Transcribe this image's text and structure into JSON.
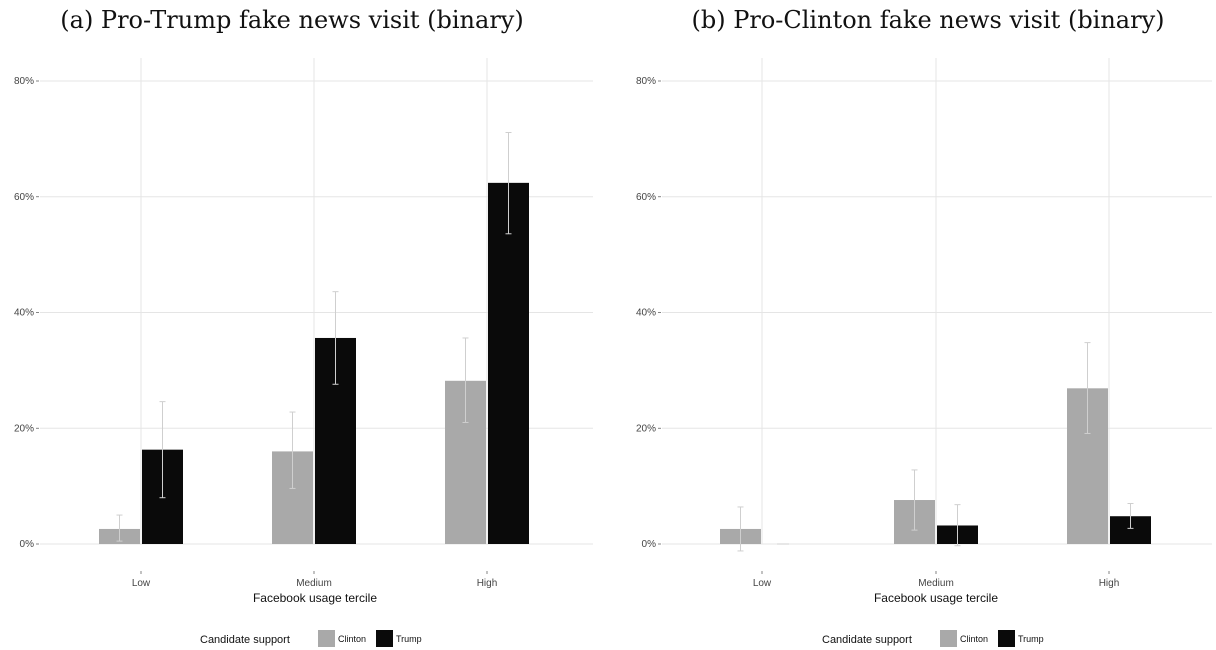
{
  "colors": {
    "clinton": "#a9a9a9",
    "trump": "#0a0a0a",
    "grid": "#e5e5e5",
    "errorbar": "#cfcfcf"
  },
  "chart_data": [
    {
      "type": "bar",
      "title": "(a) Pro-Trump fake news visit (binary)",
      "xlabel": "Facebook usage tercile",
      "ylabel": "",
      "ylim": [
        0,
        0.8
      ],
      "yticks": [
        "0%",
        "20%",
        "40%",
        "60%",
        "80%"
      ],
      "categories": [
        "Low",
        "Medium",
        "High"
      ],
      "legend_title": "Candidate support",
      "legend_position": "bottom",
      "grid": true,
      "series": [
        {
          "name": "Clinton",
          "values": [
            0.026,
            0.16,
            0.282
          ],
          "ci_low": [
            0.005,
            0.096,
            0.21
          ],
          "ci_high": [
            0.05,
            0.228,
            0.356
          ]
        },
        {
          "name": "Trump",
          "values": [
            0.163,
            0.356,
            0.624
          ],
          "ci_low": [
            0.08,
            0.276,
            0.536
          ],
          "ci_high": [
            0.246,
            0.436,
            0.711
          ]
        }
      ]
    },
    {
      "type": "bar",
      "title": "(b) Pro-Clinton fake news visit (binary)",
      "xlabel": "Facebook usage tercile",
      "ylabel": "",
      "ylim": [
        0,
        0.8
      ],
      "yticks": [
        "0%",
        "20%",
        "40%",
        "60%",
        "80%"
      ],
      "categories": [
        "Low",
        "Medium",
        "High"
      ],
      "legend_title": "Candidate support",
      "legend_position": "bottom",
      "grid": true,
      "series": [
        {
          "name": "Clinton",
          "values": [
            0.026,
            0.076,
            0.269
          ],
          "ci_low": [
            -0.012,
            0.024,
            0.191
          ],
          "ci_high": [
            0.064,
            0.128,
            0.348
          ]
        },
        {
          "name": "Trump",
          "values": [
            0.0,
            0.032,
            0.048
          ],
          "ci_low": [
            0.0,
            -0.003,
            0.027
          ],
          "ci_high": [
            0.0,
            0.068,
            0.07
          ]
        }
      ]
    }
  ]
}
